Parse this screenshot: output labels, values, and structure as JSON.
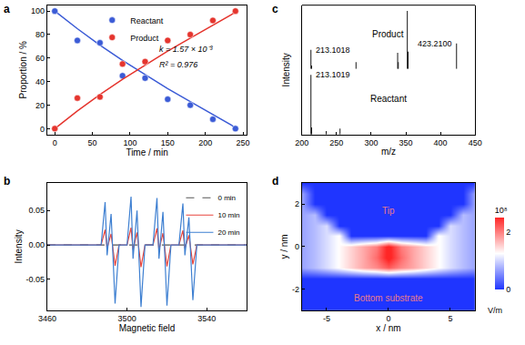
{
  "chart_data": [
    {
      "panel": "a",
      "type": "scatter",
      "x_label": "Time / min",
      "y_label": "Proportion / %",
      "x": [
        0,
        30,
        60,
        90,
        120,
        150,
        180,
        210,
        240
      ],
      "series": [
        {
          "name": "Reactant",
          "color": "#3b5bd6",
          "marker": "circle",
          "values": [
            100,
            75,
            73,
            45,
            43,
            25,
            20,
            8,
            0
          ],
          "fit": {
            "x": [
              0,
              30,
              60,
              90,
              120,
              150,
              180,
              210,
              240
            ],
            "values": [
              100,
              85,
              71,
              58,
              46,
              34,
              23,
              12,
              1
            ]
          }
        },
        {
          "name": "Product",
          "color": "#e5352e",
          "marker": "circle",
          "values": [
            0,
            26,
            27,
            55,
            57,
            75,
            80,
            92,
            100
          ],
          "fit": {
            "x": [
              0,
              30,
              60,
              90,
              120,
              150,
              180,
              210,
              240
            ],
            "values": [
              0,
              15,
              29,
              42,
              54,
              66,
              77,
              88,
              99
            ]
          }
        }
      ],
      "annotations": [
        "k = 1.57 × 10⁻³",
        "R² = 0.976"
      ],
      "xlim": [
        -10,
        255
      ],
      "xticks": [
        0,
        50,
        100,
        150,
        200,
        250
      ],
      "ylim": [
        -5,
        105
      ],
      "yticks": [
        0,
        20,
        40,
        60,
        80,
        100
      ],
      "legend": "upper center",
      "grid": false
    },
    {
      "panel": "b",
      "type": "line",
      "x_label": "Magnetic field",
      "y_label": "Intensity",
      "x": [
        3460,
        3487,
        3489,
        3490,
        3492,
        3494,
        3496,
        3500,
        3502,
        3503,
        3505,
        3507,
        3509,
        3513,
        3515,
        3516,
        3518,
        3520,
        3522,
        3526,
        3528,
        3529,
        3531,
        3533,
        3535,
        3560
      ],
      "series": [
        {
          "name": "0 min",
          "color": "#555555",
          "line_style": "dashed",
          "values": [
            0,
            0,
            0,
            0,
            0,
            0,
            0,
            0,
            0,
            0,
            0,
            0,
            0,
            0,
            0,
            0,
            0,
            0,
            0,
            0,
            0,
            0,
            0,
            0,
            0,
            0
          ]
        },
        {
          "name": "10 min",
          "color": "#e8453c",
          "line_style": "solid",
          "values": [
            0,
            0,
            0.022,
            -0.005,
            0.016,
            -0.03,
            0,
            0,
            0.025,
            -0.007,
            0.018,
            -0.032,
            0,
            0,
            0.024,
            -0.007,
            0.017,
            -0.031,
            0,
            0,
            0.021,
            -0.005,
            0.014,
            -0.028,
            0,
            0
          ]
        },
        {
          "name": "20 min",
          "color": "#3d7fd1",
          "line_style": "solid",
          "values": [
            0,
            0,
            0.062,
            -0.015,
            0.045,
            -0.085,
            0,
            0,
            0.07,
            -0.02,
            0.05,
            -0.09,
            0,
            0,
            0.068,
            -0.02,
            0.048,
            -0.088,
            0,
            0,
            0.06,
            -0.015,
            0.04,
            -0.08,
            0,
            0
          ]
        }
      ],
      "xlim": [
        3460,
        3560
      ],
      "xticks": [
        3460,
        3500,
        3540
      ],
      "ylim": [
        -0.095,
        0.09
      ],
      "yticks": [
        -0.05,
        {
          "value": 0,
          "label": "0.00"
        },
        0.05
      ],
      "legend": "upper right",
      "grid": false
    },
    {
      "panel": "c",
      "type": "bar",
      "x_label": "m/z",
      "y_label": "Intensity",
      "series": [
        {
          "name": "Product",
          "color": "#000000",
          "x": [
            213.1018,
            214.1,
            278.1,
            338.2,
            339.2,
            352.2,
            353.2,
            423.21
          ],
          "values": [
            0.33,
            0.06,
            0.12,
            0.28,
            0.12,
            1.0,
            0.3,
            0.44
          ],
          "peak_labels": [
            {
              "value": 213.1018,
              "label": "213.1018"
            },
            {
              "value": 423.21,
              "label": "423.2100"
            }
          ]
        },
        {
          "name": "Reactant",
          "color": "#000000",
          "x": [
            213.1019,
            214.1,
            235.1,
            255.1
          ],
          "values": [
            1.0,
            0.12,
            0.06,
            0.1
          ],
          "peak_labels": [
            {
              "value": 213.1019,
              "label": "213.1019"
            }
          ]
        }
      ],
      "xlim": [
        200,
        450
      ],
      "xticks": [
        200,
        250,
        300,
        350,
        400,
        450
      ],
      "ylim": [
        0,
        1.1
      ],
      "yticks": [],
      "tick_labels": "x",
      "grid": false
    },
    {
      "panel": "d",
      "type": "heatmap",
      "x_label": "x / nm",
      "y_label": "y / nm",
      "annotations": [
        "Tip",
        "Bottom substrate"
      ],
      "x": [
        -7,
        -6,
        -5,
        -4,
        -3,
        -2,
        -1,
        0,
        1,
        2,
        3,
        4,
        5,
        6,
        7
      ],
      "y": [
        -3,
        -2.5,
        -2,
        -1.5,
        -1,
        -0.5,
        0,
        0.5,
        1,
        1.5,
        2,
        2.5,
        3
      ],
      "z": [
        [
          0,
          0,
          0,
          0,
          0,
          0,
          0,
          0,
          0,
          0,
          0,
          0,
          0,
          0,
          0
        ],
        [
          0,
          0,
          0,
          0,
          0,
          0,
          0,
          0,
          0,
          0,
          0,
          0,
          0,
          0,
          0
        ],
        [
          0,
          0,
          0,
          0,
          0,
          0,
          0,
          0,
          0,
          0,
          0,
          0,
          0,
          0,
          0
        ],
        [
          0,
          0,
          0,
          0,
          0,
          0,
          0,
          0,
          0,
          0,
          0,
          0,
          0,
          0,
          0
        ],
        [
          0.68,
          0.84,
          1.04,
          1.27,
          1.51,
          1.76,
          1.93,
          2.2,
          1.93,
          1.76,
          1.51,
          1.27,
          1.04,
          0.84,
          0.68
        ],
        [
          0.68,
          0.84,
          1.04,
          1.27,
          1.51,
          1.76,
          2.1,
          2.6,
          2.1,
          1.76,
          1.51,
          1.27,
          1.04,
          0.84,
          0.68
        ],
        [
          0.68,
          0.84,
          1.04,
          1.27,
          1.51,
          1.76,
          2.0,
          2.6,
          2.0,
          1.76,
          1.51,
          1.27,
          1.04,
          0.84,
          0.68
        ],
        [
          0.68,
          0.84,
          1.04,
          1.27,
          0,
          0,
          0,
          0,
          0,
          0,
          0,
          1.27,
          1.04,
          0.84,
          0.68
        ],
        [
          0.68,
          0.84,
          1.04,
          0,
          0,
          0,
          0,
          0,
          0,
          0,
          0,
          0,
          1.04,
          0.84,
          0.68
        ],
        [
          0.68,
          0.84,
          0,
          0,
          0,
          0,
          0,
          0,
          0,
          0,
          0,
          0,
          0,
          0.84,
          0.68
        ],
        [
          0.68,
          0,
          0,
          0,
          0,
          0,
          0,
          0,
          0,
          0,
          0,
          0,
          0,
          0,
          0.68
        ],
        [
          0.68,
          0,
          0,
          0,
          0,
          0,
          0,
          0,
          0,
          0,
          0,
          0,
          0,
          0,
          0.68
        ],
        [
          0,
          0,
          0,
          0,
          0,
          0,
          0,
          0,
          0,
          0,
          0,
          0,
          0,
          0,
          0
        ]
      ],
      "colorbar": {
        "range": [
          0,
          2.5
        ],
        "ticks": [
          0,
          2
        ],
        "title": "10⁸",
        "unit": "V/m"
      },
      "xlim": [
        -7,
        7
      ],
      "xticks": [
        -5,
        0,
        5
      ],
      "ylim": [
        -3,
        3
      ],
      "yticks": [
        -2,
        0,
        2
      ],
      "grid": false
    }
  ]
}
